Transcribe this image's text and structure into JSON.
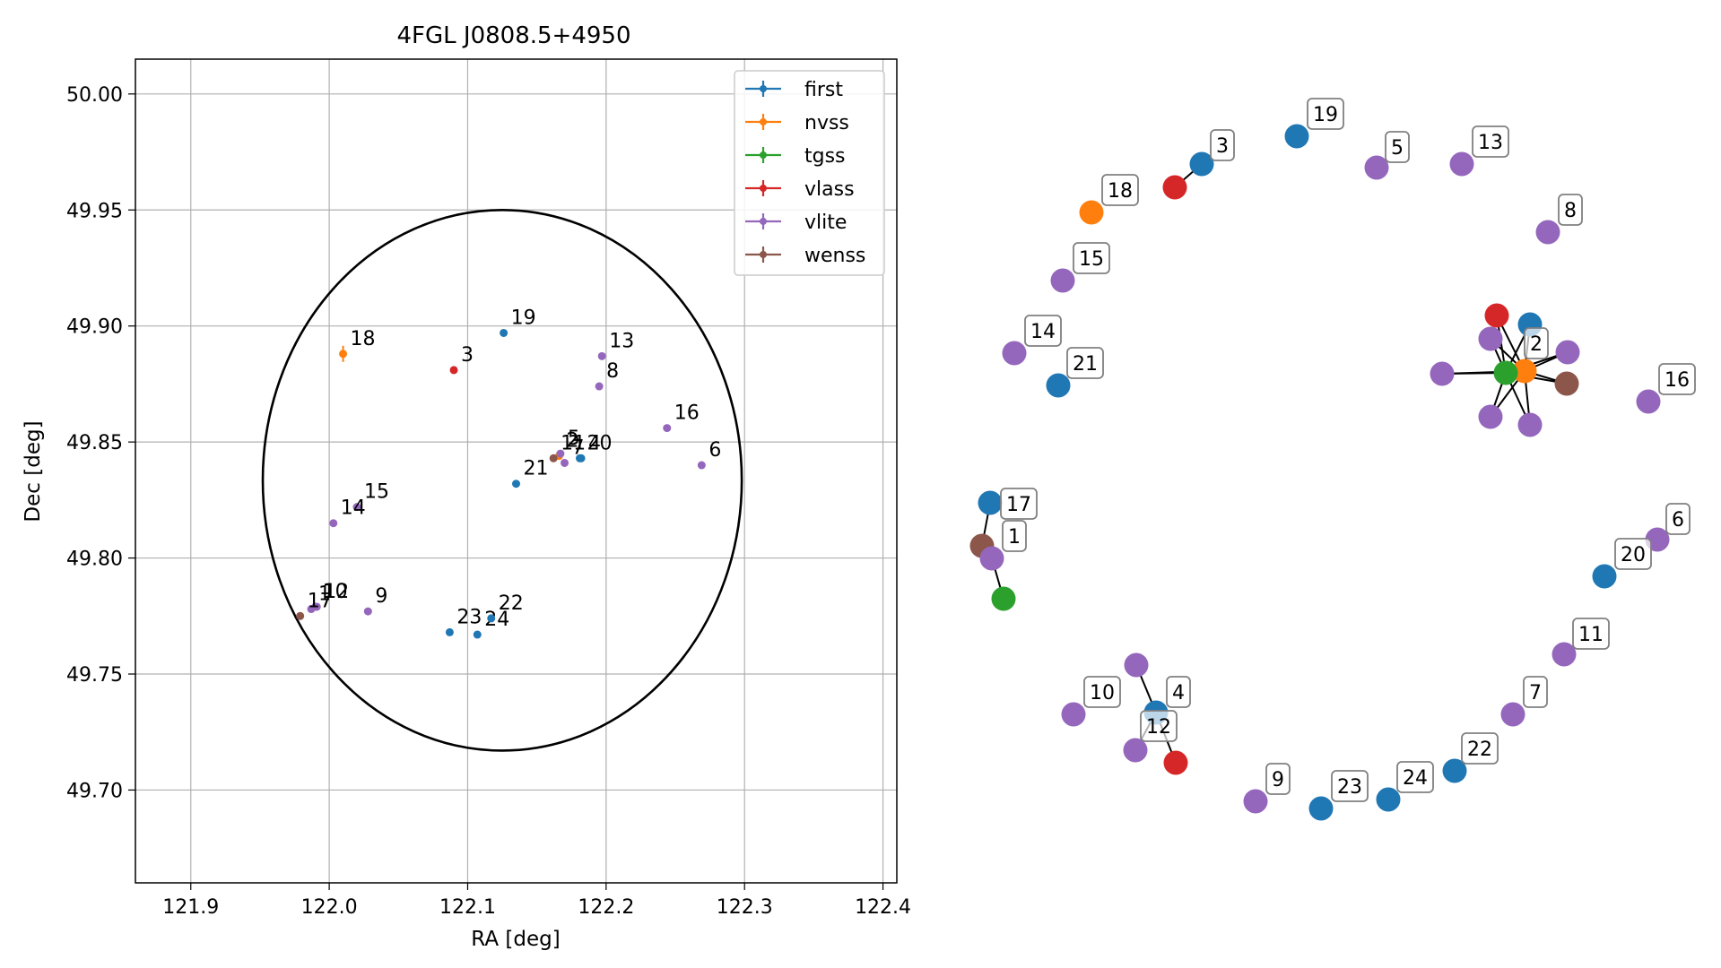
{
  "colors": {
    "first": "#1f77b4",
    "nvss": "#ff7f0e",
    "tgss": "#2ca02c",
    "vlass": "#d62728",
    "vlite": "#9467bd",
    "wenss": "#8c564b",
    "grid": "#b0b0b0",
    "ellipse": "#000000"
  },
  "chart_data": [
    {
      "type": "scatter",
      "title": "4FGL J0808.5+4950",
      "xlabel": "RA [deg]",
      "ylabel": "Dec [deg]",
      "xlim": [
        121.86,
        122.41
      ],
      "ylim": [
        49.66,
        50.015
      ],
      "xticks": [
        121.9,
        122.0,
        122.1,
        122.2,
        122.3,
        122.4
      ],
      "xtick_labels": [
        "121.9",
        "122.0",
        "122.1",
        "122.2",
        "122.3",
        "122.4"
      ],
      "yticks": [
        49.7,
        49.75,
        49.8,
        49.85,
        49.9,
        49.95,
        50.0
      ],
      "ytick_labels": [
        "49.70",
        "49.75",
        "49.80",
        "49.85",
        "49.90",
        "49.95",
        "50.00"
      ],
      "grid": true,
      "legend_position": "top-right",
      "legend": [
        "first",
        "nvss",
        "tgss",
        "vlass",
        "vlite",
        "wenss"
      ],
      "ellipse": {
        "center": [
          122.125,
          49.8335
        ],
        "semi_ra": 0.173,
        "semi_dec": 0.1165
      },
      "points": [
        {
          "label": "1",
          "survey": "vlite",
          "ra": 121.987,
          "dec": 49.778
        },
        {
          "label": "10",
          "survey": "vlite",
          "ra": 121.99,
          "dec": 49.779
        },
        {
          "label": "12",
          "survey": "vlite",
          "ra": 121.991,
          "dec": 49.779
        },
        {
          "label": "17",
          "survey": "wenss",
          "ra": 121.979,
          "dec": 49.775
        },
        {
          "label": "3",
          "survey": "vlass",
          "ra": 122.09,
          "dec": 49.881
        },
        {
          "label": "18",
          "survey": "nvss",
          "ra": 122.01,
          "dec": 49.888
        },
        {
          "label": "19",
          "survey": "first",
          "ra": 122.126,
          "dec": 49.897
        },
        {
          "label": "13",
          "survey": "vlite",
          "ra": 122.197,
          "dec": 49.887
        },
        {
          "label": "8",
          "survey": "vlite",
          "ra": 122.195,
          "dec": 49.874
        },
        {
          "label": "16",
          "survey": "vlite",
          "ra": 122.244,
          "dec": 49.856
        },
        {
          "label": "6",
          "survey": "vlite",
          "ra": 122.269,
          "dec": 49.84
        },
        {
          "label": "21",
          "survey": "first",
          "ra": 122.135,
          "dec": 49.832
        },
        {
          "label": "15",
          "survey": "vlite",
          "ra": 122.02,
          "dec": 49.822
        },
        {
          "label": "14",
          "survey": "vlite",
          "ra": 122.003,
          "dec": 49.815
        },
        {
          "label": "9",
          "survey": "vlite",
          "ra": 122.028,
          "dec": 49.777
        },
        {
          "label": "23",
          "survey": "first",
          "ra": 122.087,
          "dec": 49.768
        },
        {
          "label": "24",
          "survey": "first",
          "ra": 122.107,
          "dec": 49.767
        },
        {
          "label": "22",
          "survey": "first",
          "ra": 122.117,
          "dec": 49.774
        },
        {
          "label": "2",
          "survey": "nvss",
          "ra": 122.166,
          "dec": 49.844
        },
        {
          "label": "5",
          "survey": "vlite",
          "ra": 122.167,
          "dec": 49.845
        },
        {
          "label": "7",
          "survey": "vlite",
          "ra": 122.17,
          "dec": 49.841
        },
        {
          "label": "4",
          "survey": "first",
          "ra": 122.182,
          "dec": 49.843
        },
        {
          "label": "11",
          "survey": "wenss",
          "ra": 122.162,
          "dec": 49.843
        },
        {
          "label": "20",
          "survey": "first",
          "ra": 122.181,
          "dec": 49.843
        }
      ]
    },
    {
      "type": "network",
      "nodes": [
        {
          "id": "19",
          "survey": "first",
          "labeled": true
        },
        {
          "id": "3",
          "survey": "first",
          "labeled": true
        },
        {
          "id": "3b",
          "survey": "vlass",
          "labeled": false
        },
        {
          "id": "5",
          "survey": "vlite",
          "labeled": true
        },
        {
          "id": "13",
          "survey": "vlite",
          "labeled": true
        },
        {
          "id": "18",
          "survey": "nvss",
          "labeled": true
        },
        {
          "id": "8",
          "survey": "vlite",
          "labeled": true
        },
        {
          "id": "15",
          "survey": "vlite",
          "labeled": true
        },
        {
          "id": "14",
          "survey": "vlite",
          "labeled": true
        },
        {
          "id": "21",
          "survey": "first",
          "labeled": true
        },
        {
          "id": "16",
          "survey": "vlite",
          "labeled": true
        },
        {
          "id": "17",
          "survey": "first",
          "labeled": true
        },
        {
          "id": "1w",
          "survey": "wenss",
          "labeled": false
        },
        {
          "id": "1",
          "survey": "vlite",
          "labeled": true
        },
        {
          "id": "1t",
          "survey": "tgss",
          "labeled": false
        },
        {
          "id": "6",
          "survey": "vlite",
          "labeled": true
        },
        {
          "id": "20",
          "survey": "first",
          "labeled": true
        },
        {
          "id": "11",
          "survey": "vlite",
          "labeled": true
        },
        {
          "id": "10",
          "survey": "vlite",
          "labeled": true
        },
        {
          "id": "4a",
          "survey": "vlite",
          "labeled": false
        },
        {
          "id": "4",
          "survey": "first",
          "labeled": true
        },
        {
          "id": "12",
          "survey": "vlite",
          "labeled": true
        },
        {
          "id": "4r",
          "survey": "vlass",
          "labeled": false
        },
        {
          "id": "7",
          "survey": "vlite",
          "labeled": true
        },
        {
          "id": "9",
          "survey": "vlite",
          "labeled": true
        },
        {
          "id": "23",
          "survey": "first",
          "labeled": true
        },
        {
          "id": "24",
          "survey": "first",
          "labeled": true
        },
        {
          "id": "22",
          "survey": "first",
          "labeled": true
        },
        {
          "id": "2",
          "survey": "nvss",
          "labeled": true
        },
        {
          "id": "2r",
          "survey": "vlass",
          "labeled": false
        },
        {
          "id": "2f",
          "survey": "first",
          "labeled": false
        },
        {
          "id": "2v1",
          "survey": "vlite",
          "labeled": false
        },
        {
          "id": "2v2",
          "survey": "vlite",
          "labeled": false
        },
        {
          "id": "2v3",
          "survey": "vlite",
          "labeled": false
        },
        {
          "id": "2v4",
          "survey": "vlite",
          "labeled": false
        },
        {
          "id": "2v5",
          "survey": "vlite",
          "labeled": false
        },
        {
          "id": "2g",
          "survey": "tgss",
          "labeled": false
        },
        {
          "id": "2w",
          "survey": "wenss",
          "labeled": false
        }
      ],
      "edges": [
        [
          "3",
          "3b"
        ],
        [
          "17",
          "1w"
        ],
        [
          "1w",
          "1"
        ],
        [
          "1",
          "1t"
        ],
        [
          "4a",
          "4"
        ],
        [
          "4",
          "12"
        ],
        [
          "4",
          "4r"
        ],
        [
          "2",
          "2r"
        ],
        [
          "2",
          "2f"
        ],
        [
          "2",
          "2v1"
        ],
        [
          "2",
          "2v2"
        ],
        [
          "2",
          "2v3"
        ],
        [
          "2",
          "2v4"
        ],
        [
          "2",
          "2v5"
        ],
        [
          "2",
          "2g"
        ],
        [
          "2",
          "2w"
        ],
        [
          "2g",
          "2r"
        ],
        [
          "2g",
          "2f"
        ],
        [
          "2g",
          "2v1"
        ],
        [
          "2g",
          "2v2"
        ],
        [
          "2g",
          "2v3"
        ],
        [
          "2g",
          "2v4"
        ],
        [
          "2g",
          "2v5"
        ],
        [
          "2g",
          "2w"
        ]
      ]
    }
  ]
}
